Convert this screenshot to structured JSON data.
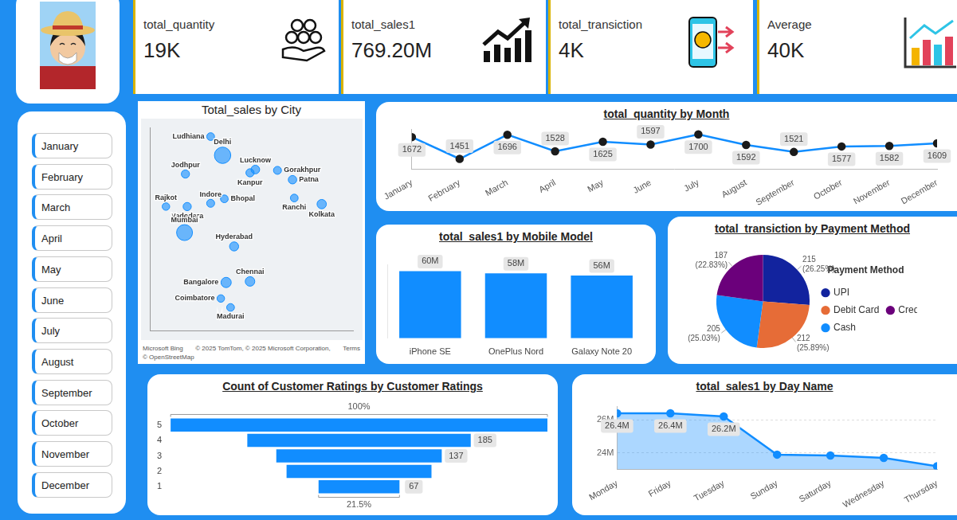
{
  "kpis": [
    {
      "label": "total_quantity",
      "value": "19K"
    },
    {
      "label": "total_sales1",
      "value": "769.20M"
    },
    {
      "label": "total_transiction",
      "value": "4K"
    },
    {
      "label": "Average",
      "value": "40K"
    }
  ],
  "month_slicer": [
    "January",
    "February",
    "March",
    "April",
    "May",
    "June",
    "July",
    "August",
    "September",
    "October",
    "November",
    "December"
  ],
  "chart_data": [
    {
      "type": "bubble",
      "title": "Total_sales by City",
      "categories": [
        "Ludhiana",
        "Delhi",
        "Jodhpur",
        "Lucknow",
        "Gorakhpur",
        "Patna",
        "Kanpur",
        "Ranchi",
        "Indore",
        "Rajkot",
        "Vadodara",
        "Bhopal",
        "Mumbai",
        "Kolkata",
        "Hyderabad",
        "Chennai",
        "Coimbatore",
        "Bangalore",
        "Madurai"
      ],
      "x": [
        75.85,
        77.2,
        73.0,
        80.9,
        83.4,
        85.1,
        80.3,
        85.3,
        75.85,
        70.8,
        73.2,
        77.4,
        72.9,
        88.4,
        78.5,
        80.3,
        77.0,
        77.6,
        78.1
      ],
      "y": [
        30.9,
        28.6,
        26.3,
        26.85,
        26.75,
        25.6,
        26.45,
        23.35,
        22.7,
        22.3,
        22.3,
        23.25,
        19.1,
        22.6,
        17.4,
        13.1,
        11.0,
        12.97,
        9.9
      ],
      "sizes": [
        34,
        72,
        36,
        38,
        35,
        37,
        36,
        34,
        35,
        33,
        36,
        34,
        70,
        41,
        40,
        42,
        33,
        45,
        34
      ],
      "xlim": [
        69,
        92
      ],
      "ylim": [
        7,
        32
      ],
      "color": "#118DFF",
      "grid": false,
      "tick_labels": false,
      "annotations": [
        "Microsoft Bing",
        "© 2025 TomTom, © 2025 Microsoft Corporation,",
        "Terms",
        "© OpenStreetMap"
      ]
    },
    {
      "type": "line",
      "title": "total_quantity by Month",
      "categories": [
        "January",
        "February",
        "March",
        "April",
        "May",
        "June",
        "July",
        "August",
        "September",
        "October",
        "November",
        "December"
      ],
      "values": [
        1672,
        1451,
        1696,
        1528,
        1625,
        1597,
        1700,
        1592,
        1521,
        1577,
        1582,
        1609
      ],
      "ylim": [
        1350,
        1750
      ],
      "color": "#118DFF",
      "marker": "circle",
      "data_labels": true,
      "tick_labels": "x",
      "grid": false
    },
    {
      "type": "bar",
      "title": "total_sales1 by Mobile Model",
      "categories": [
        "iPhone SE",
        "OnePlus Nord",
        "Galaxy Note 20"
      ],
      "values": [
        60,
        58,
        56
      ],
      "value_labels": [
        "60M",
        "58M",
        "56M"
      ],
      "ylim": [
        0,
        66
      ],
      "color": "#118DFF",
      "data_labels": true,
      "tick_labels": "x",
      "grid": false
    },
    {
      "type": "pie",
      "title": "total_transiction by Payment Method",
      "categories": [
        "UPI",
        "Debit Card",
        "Cash",
        "Credit Card"
      ],
      "values": [
        215,
        212,
        205,
        187
      ],
      "value_labels": [
        "215 (26.25%)",
        "212 (25.89%)",
        "205 (25.03%)",
        "187 (22.83%)"
      ],
      "colors": [
        "#12239E",
        "#E66C37",
        "#118DFF",
        "#6B007B"
      ],
      "legend": "right",
      "legend_title": "Payment Method",
      "data_labels": true
    },
    {
      "type": "funnel",
      "title": "Count of Customer Ratings by Customer Ratings",
      "categories": [
        "5",
        "4",
        "3",
        "2",
        "1"
      ],
      "values": [
        312,
        185,
        137,
        120,
        67
      ],
      "value_labels": [
        null,
        "185",
        "137",
        null,
        "67"
      ],
      "annotations": [
        "100%",
        "21.5%"
      ],
      "color": "#118DFF",
      "orientation": "horizontal",
      "data_labels": true,
      "tick_labels": "y",
      "grid": false
    },
    {
      "type": "area",
      "title": "total_sales1 by Day Name",
      "categories": [
        "Monday",
        "Friday",
        "Tuesday",
        "Sunday",
        "Saturday",
        "Wednesday",
        "Thursday"
      ],
      "values": [
        26.4,
        26.4,
        26.2,
        23.9,
        23.85,
        23.7,
        23.2
      ],
      "value_labels": [
        "26.4M",
        "26.4M",
        "26.2M",
        null,
        null,
        null,
        null
      ],
      "ylim": [
        23,
        26.8
      ],
      "yticks": [
        {
          "value": 24,
          "label": "24M"
        },
        {
          "value": 26,
          "label": "26M"
        }
      ],
      "color": "#118DFF",
      "marker": "circle",
      "data_labels": true,
      "grid": true
    }
  ]
}
